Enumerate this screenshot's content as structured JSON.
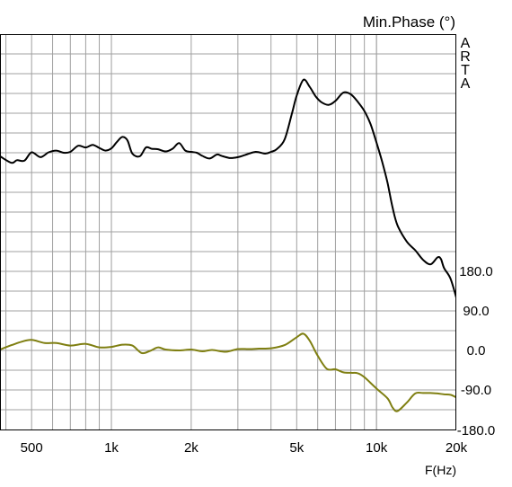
{
  "chart_data": {
    "type": "line",
    "ylabel": "Min.Phase (°)",
    "xlabel": "F(Hz)",
    "x_scale": "log",
    "xlim": [
      380,
      20000
    ],
    "ylim": [
      -180,
      720
    ],
    "grid": true,
    "watermark": [
      "A",
      "R",
      "T",
      "A"
    ],
    "x_ticks": [
      {
        "value": 500,
        "label": "500"
      },
      {
        "value": 1000,
        "label": "1k"
      },
      {
        "value": 2000,
        "label": "2k"
      },
      {
        "value": 5000,
        "label": "5k"
      },
      {
        "value": 10000,
        "label": "10k"
      },
      {
        "value": 20000,
        "label": "20k"
      }
    ],
    "y_ticks": [
      {
        "value": 180,
        "label": "180.0"
      },
      {
        "value": 90,
        "label": "90.0"
      },
      {
        "value": 0,
        "label": "0.0"
      },
      {
        "value": -90,
        "label": "-90.0"
      },
      {
        "value": -180,
        "label": "-180.0"
      }
    ],
    "series": [
      {
        "color": "#000000",
        "x": [
          380,
          420,
          440,
          470,
          500,
          540,
          580,
          620,
          660,
          700,
          750,
          800,
          850,
          900,
          950,
          1000,
          1050,
          1100,
          1150,
          1200,
          1280,
          1350,
          1420,
          1500,
          1600,
          1700,
          1800,
          1900,
          2000,
          2100,
          2200,
          2350,
          2500,
          2600,
          2800,
          3000,
          3200,
          3500,
          3800,
          4000,
          4200,
          4500,
          4800,
          5000,
          5300,
          5600,
          5900,
          6200,
          6600,
          7000,
          7500,
          8000,
          8500,
          9000,
          9500,
          10000,
          10500,
          11000,
          11500,
          12000,
          13000,
          14000,
          15000,
          16000,
          17000,
          17500,
          18000,
          19000,
          20000
        ],
        "y": [
          442,
          427,
          433,
          432,
          451,
          440,
          451,
          455,
          450,
          452,
          466,
          462,
          468,
          461,
          455,
          460,
          475,
          486,
          478,
          448,
          442,
          462,
          459,
          458,
          453,
          459,
          472,
          455,
          452,
          450,
          443,
          437,
          446,
          443,
          438,
          440,
          445,
          452,
          448,
          452,
          458,
          480,
          540,
          580,
          616,
          600,
          578,
          565,
          559,
          568,
          587,
          583,
          566,
          545,
          515,
          473,
          430,
          382,
          325,
          285,
          248,
          228,
          206,
          196,
          212,
          208,
          187,
          164,
          120
        ]
      },
      {
        "color": "#7f7f12",
        "x": [
          380,
          420,
          460,
          500,
          560,
          620,
          700,
          800,
          900,
          1000,
          1100,
          1200,
          1300,
          1400,
          1500,
          1600,
          1800,
          2000,
          2200,
          2400,
          2700,
          3000,
          3300,
          3600,
          4000,
          4500,
          5000,
          5300,
          5600,
          6000,
          6500,
          7000,
          7500,
          8000,
          8500,
          9000,
          10000,
          11000,
          11500,
          12000,
          13000,
          14000,
          15000,
          16000,
          17000,
          18000,
          19000,
          20000
        ],
        "y": [
          2,
          12,
          20,
          24,
          17,
          17,
          11,
          15,
          7,
          8,
          13,
          11,
          -6,
          -1,
          7,
          2,
          0,
          2,
          -2,
          1,
          -3,
          3,
          3,
          4,
          5,
          12,
          30,
          38,
          22,
          -12,
          -42,
          -43,
          -50,
          -51,
          -52,
          -61,
          -87,
          -109,
          -130,
          -138,
          -119,
          -98,
          -97,
          -97,
          -98,
          -100,
          -101,
          -107
        ]
      }
    ]
  }
}
